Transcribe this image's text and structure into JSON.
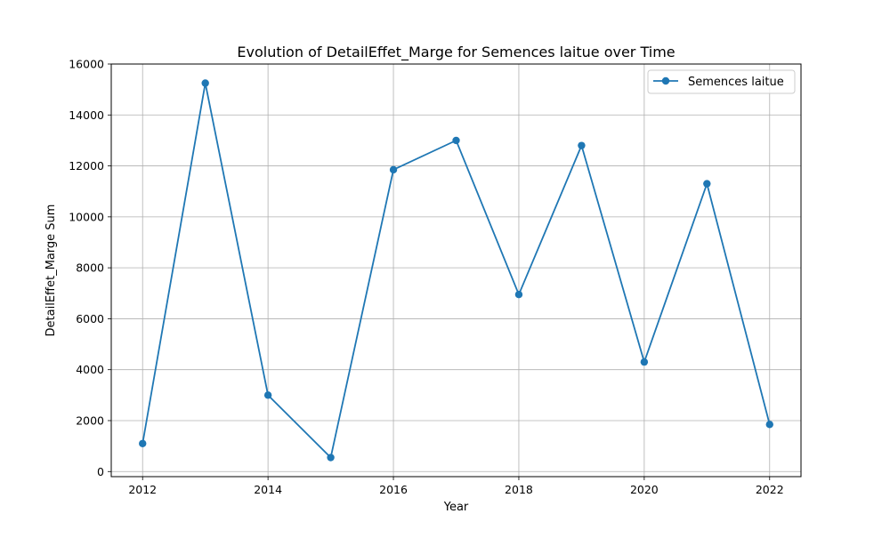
{
  "chart_data": {
    "type": "line",
    "title": "Evolution of DetailEffet_Marge for Semences laitue over Time",
    "xlabel": "Year",
    "ylabel": "DetailEffet_Marge Sum",
    "x": [
      2012,
      2013,
      2014,
      2015,
      2016,
      2017,
      2018,
      2019,
      2020,
      2021,
      2022
    ],
    "series": [
      {
        "name": "Semences laitue",
        "values": [
          1100,
          15250,
          3000,
          550,
          11850,
          13000,
          6950,
          12800,
          4300,
          11300,
          1850
        ],
        "color": "#1f77b4",
        "marker": "circle"
      }
    ],
    "xlim": [
      2011.5,
      2022.5
    ],
    "ylim": [
      -200,
      16000
    ],
    "xticks": [
      2012,
      2014,
      2016,
      2018,
      2020,
      2022
    ],
    "yticks": [
      0,
      2000,
      4000,
      6000,
      8000,
      10000,
      12000,
      14000,
      16000
    ],
    "grid": true,
    "legend_position": "top-right"
  }
}
